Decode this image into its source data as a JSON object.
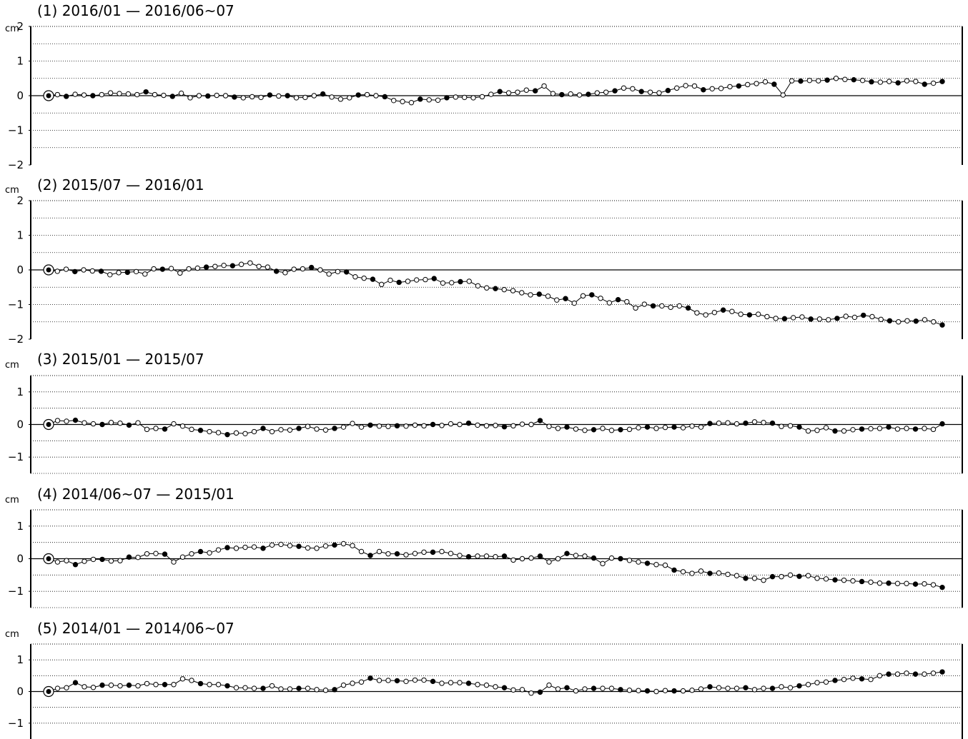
{
  "unit_label": "cm",
  "colors": {
    "line": "#000000",
    "open_marker": "#ffffff",
    "filled_marker": "#000000",
    "grid": "#000000"
  },
  "chart_data": [
    {
      "type": "line",
      "title": "(1) 2016/01 — 2016/06~07",
      "ylabel": "cm",
      "ylim": [
        -2,
        2
      ],
      "yticks": [
        "2",
        "1",
        "0",
        "−1",
        "−2"
      ],
      "ytick_values": [
        2,
        1,
        0,
        -1,
        -2
      ],
      "grid": true,
      "series": [
        {
          "values": [
            0,
            0.03,
            -0.02,
            0.04,
            0.02,
            0.0,
            0.03,
            0.08,
            0.06,
            0.05,
            0.03,
            0.11,
            0.03,
            0.01,
            -0.02,
            0.07,
            -0.06,
            0.0,
            -0.01,
            0.01,
            0.0,
            -0.04,
            -0.06,
            -0.03,
            -0.05,
            0.02,
            -0.01,
            0.0,
            -0.06,
            -0.05,
            0.0,
            0.05,
            -0.04,
            -0.1,
            -0.06,
            0.02,
            0.03,
            0.0,
            -0.03,
            -0.14,
            -0.17,
            -0.2,
            -0.1,
            -0.12,
            -0.13,
            -0.06,
            -0.04,
            -0.05,
            -0.06,
            -0.03,
            0.04,
            0.12,
            0.08,
            0.1,
            0.16,
            0.14,
            0.28,
            0.06,
            0.03,
            0.05,
            0.02,
            0.04,
            0.08,
            0.1,
            0.14,
            0.22,
            0.2,
            0.12,
            0.1,
            0.08,
            0.15,
            0.22,
            0.29,
            0.28,
            0.17,
            0.2,
            0.21,
            0.26,
            0.28,
            0.32,
            0.35,
            0.4,
            0.33,
            0.02,
            0.43,
            0.42,
            0.44,
            0.43,
            0.45,
            0.5,
            0.47,
            0.46,
            0.44,
            0.4,
            0.39,
            0.41,
            0.37,
            0.43,
            0.41,
            0.33,
            0.36,
            0.41
          ]
        }
      ],
      "filled_indices": [
        2,
        5,
        11,
        14,
        18,
        21,
        25,
        27,
        31,
        35,
        38,
        42,
        45,
        51,
        55,
        58,
        61,
        64,
        67,
        70,
        74,
        78,
        82,
        85,
        88,
        91,
        93,
        96,
        99,
        101
      ]
    },
    {
      "type": "line",
      "title": "(2) 2015/07 — 2016/01",
      "ylabel": "cm",
      "ylim": [
        -2,
        2
      ],
      "yticks": [
        "2",
        "1",
        "0",
        "−1",
        "−2"
      ],
      "ytick_values": [
        2,
        1,
        0,
        -1,
        -2
      ],
      "grid": true,
      "series": [
        {
          "values": [
            0,
            -0.04,
            0.02,
            -0.05,
            0.0,
            -0.03,
            -0.04,
            -0.14,
            -0.08,
            -0.07,
            -0.05,
            -0.12,
            0.03,
            0.02,
            0.04,
            -0.09,
            0.03,
            0.05,
            0.08,
            0.1,
            0.13,
            0.12,
            0.16,
            0.2,
            0.1,
            0.08,
            -0.04,
            -0.08,
            0.02,
            0.03,
            0.07,
            0.0,
            -0.12,
            -0.05,
            -0.06,
            -0.2,
            -0.24,
            -0.27,
            -0.42,
            -0.3,
            -0.36,
            -0.33,
            -0.29,
            -0.28,
            -0.25,
            -0.38,
            -0.37,
            -0.34,
            -0.33,
            -0.46,
            -0.52,
            -0.54,
            -0.57,
            -0.6,
            -0.66,
            -0.72,
            -0.7,
            -0.76,
            -0.87,
            -0.83,
            -0.96,
            -0.75,
            -0.72,
            -0.82,
            -0.95,
            -0.86,
            -0.92,
            -1.1,
            -0.99,
            -1.04,
            -1.04,
            -1.08,
            -1.04,
            -1.1,
            -1.24,
            -1.3,
            -1.23,
            -1.16,
            -1.2,
            -1.28,
            -1.3,
            -1.28,
            -1.35,
            -1.4,
            -1.41,
            -1.38,
            -1.36,
            -1.42,
            -1.42,
            -1.44,
            -1.4,
            -1.34,
            -1.37,
            -1.31,
            -1.35,
            -1.43,
            -1.47,
            -1.5,
            -1.47,
            -1.48,
            -1.44,
            -1.5,
            -1.59
          ]
        }
      ],
      "filled_indices": [
        3,
        6,
        9,
        13,
        18,
        21,
        26,
        30,
        34,
        37,
        40,
        44,
        47,
        51,
        56,
        59,
        62,
        65,
        69,
        73,
        77,
        80,
        84,
        87,
        90,
        93,
        96,
        99,
        102
      ]
    },
    {
      "type": "line",
      "title": "(3) 2015/01 — 2015/07",
      "ylabel": "cm",
      "ylim": [
        -1.5,
        1.5
      ],
      "yticks": [
        "1",
        "0",
        "−1"
      ],
      "ytick_values": [
        1,
        0,
        -1
      ],
      "grid": true,
      "series": [
        {
          "values": [
            0,
            0.12,
            0.1,
            0.13,
            0.05,
            0.02,
            0.0,
            0.06,
            0.04,
            -0.02,
            0.05,
            -0.15,
            -0.12,
            -0.14,
            0.02,
            -0.05,
            -0.15,
            -0.18,
            -0.22,
            -0.25,
            -0.31,
            -0.26,
            -0.28,
            -0.22,
            -0.12,
            -0.22,
            -0.16,
            -0.17,
            -0.12,
            -0.06,
            -0.14,
            -0.17,
            -0.12,
            -0.08,
            0.03,
            -0.08,
            -0.02,
            -0.05,
            -0.06,
            -0.04,
            -0.05,
            -0.02,
            -0.04,
            0.0,
            -0.03,
            0.02,
            0.0,
            0.04,
            -0.02,
            -0.04,
            -0.03,
            -0.07,
            -0.04,
            0.01,
            0.0,
            0.12,
            -0.06,
            -0.12,
            -0.08,
            -0.14,
            -0.18,
            -0.16,
            -0.12,
            -0.18,
            -0.16,
            -0.15,
            -0.1,
            -0.08,
            -0.12,
            -0.09,
            -0.08,
            -0.1,
            -0.05,
            -0.08,
            0.03,
            0.04,
            0.05,
            0.02,
            0.04,
            0.08,
            0.06,
            0.04,
            -0.06,
            -0.04,
            -0.08,
            -0.2,
            -0.18,
            -0.1,
            -0.2,
            -0.2,
            -0.16,
            -0.14,
            -0.13,
            -0.12,
            -0.08,
            -0.14,
            -0.12,
            -0.14,
            -0.12,
            -0.15,
            0.02
          ]
        }
      ],
      "filled_indices": [
        3,
        6,
        9,
        13,
        17,
        20,
        24,
        28,
        32,
        36,
        39,
        43,
        47,
        51,
        55,
        58,
        61,
        64,
        67,
        70,
        74,
        78,
        81,
        84,
        88,
        91,
        94,
        97,
        100
      ]
    },
    {
      "type": "line",
      "title": "(4) 2014/06~07 — 2015/01",
      "ylabel": "cm",
      "ylim": [
        -1.5,
        1.5
      ],
      "yticks": [
        "1",
        "0",
        "−1"
      ],
      "ytick_values": [
        1,
        0,
        -1
      ],
      "grid": true,
      "series": [
        {
          "values": [
            0,
            -0.1,
            -0.06,
            -0.18,
            -0.08,
            -0.02,
            -0.02,
            -0.07,
            -0.06,
            0.05,
            0.04,
            0.15,
            0.16,
            0.14,
            -0.1,
            0.05,
            0.15,
            0.22,
            0.18,
            0.27,
            0.34,
            0.32,
            0.35,
            0.36,
            0.32,
            0.42,
            0.44,
            0.4,
            0.38,
            0.33,
            0.32,
            0.39,
            0.42,
            0.46,
            0.4,
            0.22,
            0.1,
            0.22,
            0.15,
            0.15,
            0.12,
            0.16,
            0.2,
            0.2,
            0.22,
            0.16,
            0.1,
            0.06,
            0.08,
            0.08,
            0.06,
            0.08,
            -0.04,
            0.0,
            0.02,
            0.08,
            -0.1,
            0.0,
            0.16,
            0.1,
            0.08,
            0.02,
            -0.15,
            0.02,
            0.0,
            -0.05,
            -0.1,
            -0.14,
            -0.18,
            -0.2,
            -0.35,
            -0.4,
            -0.45,
            -0.38,
            -0.45,
            -0.44,
            -0.48,
            -0.52,
            -0.6,
            -0.6,
            -0.66,
            -0.55,
            -0.55,
            -0.5,
            -0.54,
            -0.52,
            -0.6,
            -0.62,
            -0.65,
            -0.66,
            -0.68,
            -0.7,
            -0.72,
            -0.75,
            -0.75,
            -0.76,
            -0.76,
            -0.78,
            -0.77,
            -0.8,
            -0.88
          ]
        }
      ],
      "filled_indices": [
        3,
        6,
        9,
        13,
        17,
        20,
        24,
        28,
        32,
        36,
        39,
        43,
        47,
        51,
        55,
        58,
        61,
        64,
        67,
        70,
        74,
        78,
        81,
        84,
        88,
        91,
        94,
        97,
        100
      ]
    },
    {
      "type": "line",
      "title": "(5) 2014/01 — 2014/06~07",
      "ylabel": "cm",
      "ylim": [
        -1.5,
        1.5
      ],
      "yticks": [
        "1",
        "0",
        "−1"
      ],
      "ytick_values": [
        1,
        0,
        -1
      ],
      "grid": true,
      "series": [
        {
          "values": [
            0,
            0.1,
            0.12,
            0.28,
            0.15,
            0.13,
            0.2,
            0.2,
            0.18,
            0.2,
            0.18,
            0.25,
            0.22,
            0.22,
            0.22,
            0.4,
            0.35,
            0.25,
            0.22,
            0.22,
            0.18,
            0.12,
            0.12,
            0.1,
            0.1,
            0.18,
            0.08,
            0.08,
            0.1,
            0.1,
            0.06,
            0.04,
            0.06,
            0.2,
            0.26,
            0.3,
            0.42,
            0.35,
            0.35,
            0.34,
            0.32,
            0.36,
            0.36,
            0.32,
            0.26,
            0.28,
            0.28,
            0.26,
            0.22,
            0.2,
            0.15,
            0.12,
            0.05,
            0.06,
            -0.05,
            -0.02,
            0.2,
            0.08,
            0.12,
            0.02,
            0.08,
            0.1,
            0.1,
            0.1,
            0.06,
            0.04,
            0.03,
            0.02,
            0.0,
            0.03,
            0.02,
            0.02,
            0.04,
            0.08,
            0.15,
            0.12,
            0.1,
            0.1,
            0.12,
            0.06,
            0.1,
            0.1,
            0.15,
            0.12,
            0.18,
            0.22,
            0.28,
            0.3,
            0.35,
            0.38,
            0.42,
            0.4,
            0.38,
            0.5,
            0.55,
            0.55,
            0.58,
            0.55,
            0.55,
            0.58,
            0.62
          ]
        }
      ],
      "filled_indices": [
        3,
        6,
        9,
        13,
        17,
        20,
        24,
        28,
        32,
        36,
        39,
        43,
        47,
        51,
        55,
        58,
        61,
        64,
        67,
        70,
        74,
        78,
        81,
        84,
        88,
        91,
        94,
        97,
        100
      ]
    }
  ]
}
